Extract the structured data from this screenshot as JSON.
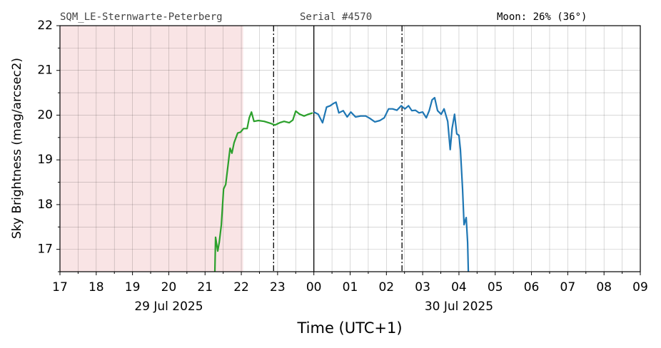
{
  "chart_data": {
    "type": "line",
    "title_left": "SQM_LE-Sternwarte-Peterberg",
    "title_center": "Serial #4570",
    "title_right": "Moon: 26% (36°)",
    "xlabel": "Time (UTC+1)",
    "ylabel": "Sky Brightness (mag/arcsec2)",
    "xlim": [
      17,
      33
    ],
    "ylim": [
      16.5,
      22
    ],
    "xticks": [
      17,
      18,
      19,
      20,
      21,
      22,
      23,
      {
        "value": 24,
        "label": "00"
      },
      {
        "value": 25,
        "label": "01"
      },
      {
        "value": 26,
        "label": "02"
      },
      {
        "value": 27,
        "label": "03"
      },
      {
        "value": 28,
        "label": "04"
      },
      {
        "value": 29,
        "label": "05"
      },
      {
        "value": 30,
        "label": "06"
      },
      {
        "value": 31,
        "label": "07"
      },
      {
        "value": 32,
        "label": "08"
      },
      {
        "value": 33,
        "label": "09"
      }
    ],
    "xminorticks": [
      17.5,
      18.5,
      19.5,
      20.5,
      21.5,
      22.5,
      23.5,
      24.5,
      25.5,
      26.5,
      27.5,
      28.5,
      29.5,
      30.5,
      31.5,
      32.5
    ],
    "yticks": [
      17,
      18,
      19,
      20,
      21,
      22
    ],
    "yminorticks": [
      16.5,
      17.5,
      18.5,
      19.5,
      20.5,
      21.5
    ],
    "grid": true,
    "date_labels": [
      {
        "text": "29 Jul 2025",
        "x": 20
      },
      {
        "text": "30 Jul 2025",
        "x": 28
      }
    ],
    "shade": {
      "xlim": [
        17,
        22.05
      ],
      "color": "#f9e4e5"
    },
    "vlines": [
      {
        "x": 22.89,
        "style": "dashdot"
      },
      {
        "x": 24,
        "style": "solid"
      },
      {
        "x": 26.43,
        "style": "dashdot"
      }
    ],
    "series": [
      {
        "color": "#2ca02c",
        "x": [
          21.27,
          21.29,
          21.35,
          21.39,
          21.45,
          21.51,
          21.57,
          21.69,
          21.74,
          21.8,
          21.9,
          21.98,
          22.06,
          22.16,
          22.22,
          22.28,
          22.35,
          22.47,
          22.63,
          22.79,
          22.93,
          23.06,
          23.18,
          23.32,
          23.42,
          23.5,
          23.61,
          23.73,
          23.85,
          23.97
        ],
        "values": [
          16.5,
          17.27,
          16.96,
          17.15,
          17.55,
          18.35,
          18.45,
          19.26,
          19.15,
          19.38,
          19.6,
          19.62,
          19.7,
          19.7,
          19.94,
          20.07,
          19.86,
          19.88,
          19.86,
          19.82,
          19.78,
          19.83,
          19.86,
          19.83,
          19.89,
          20.09,
          20.02,
          19.98,
          20.02,
          20.05
        ]
      },
      {
        "color": "#1f77b4",
        "x": [
          24.0,
          24.12,
          24.24,
          24.35,
          24.45,
          24.54,
          24.61,
          24.69,
          24.81,
          24.92,
          25.02,
          25.15,
          25.29,
          25.43,
          25.54,
          25.68,
          25.82,
          25.94,
          26.06,
          26.17,
          26.29,
          26.41,
          26.51,
          26.61,
          26.7,
          26.8,
          26.9,
          27.0,
          27.1,
          27.18,
          27.26,
          27.33,
          27.41,
          27.51,
          27.59,
          27.69,
          27.76,
          27.81,
          27.88,
          27.94,
          28.0,
          28.04,
          28.1,
          28.14,
          28.2,
          28.24,
          28.26
        ],
        "values": [
          20.07,
          20.02,
          19.83,
          20.18,
          20.21,
          20.26,
          20.29,
          20.05,
          20.1,
          19.96,
          20.07,
          19.96,
          19.98,
          19.98,
          19.93,
          19.85,
          19.88,
          19.94,
          20.14,
          20.14,
          20.11,
          20.21,
          20.14,
          20.21,
          20.1,
          20.11,
          20.05,
          20.07,
          19.94,
          20.1,
          20.34,
          20.39,
          20.1,
          20.02,
          20.14,
          19.86,
          19.23,
          19.7,
          20.02,
          19.58,
          19.55,
          19.23,
          18.35,
          17.55,
          17.71,
          17.15,
          16.5
        ]
      }
    ]
  }
}
